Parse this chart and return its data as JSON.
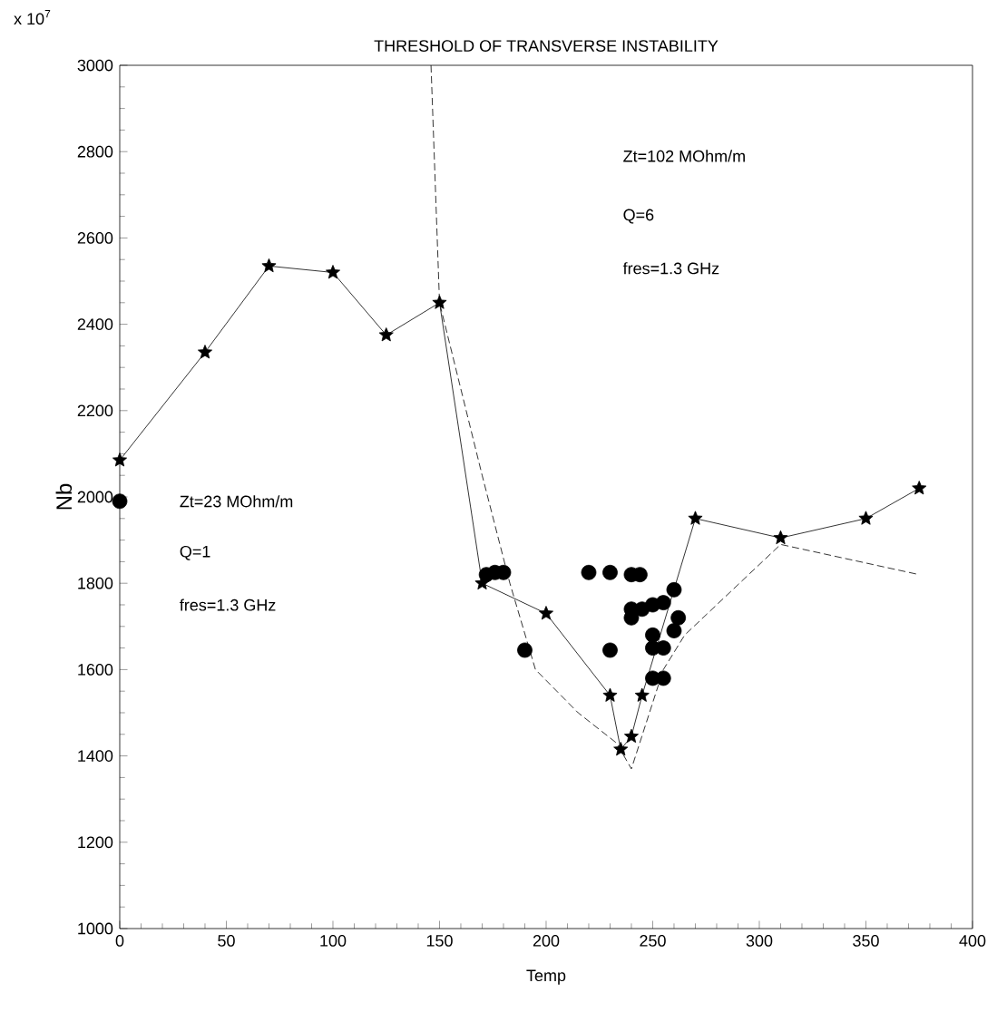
{
  "chart_data": {
    "type": "line",
    "title": "THRESHOLD OF TRANSVERSE INSTABILITY",
    "xlabel": "Temp",
    "ylabel": "Nb",
    "xlim": [
      0,
      400
    ],
    "ylim": [
      1000,
      3000
    ],
    "xticks": [
      0,
      50,
      100,
      150,
      200,
      250,
      300,
      350,
      400
    ],
    "yticks": [
      1000,
      1200,
      1400,
      1600,
      1800,
      2000,
      2200,
      2400,
      2600,
      2800,
      3000
    ],
    "annotations": [
      "x 10$^{7}$",
      "Zt=102 MOhm/m",
      "Q=6",
      "fres=1.3 GHz",
      "Zt=23 MOhm/m",
      "Q=1",
      "fres=1.3 GHz"
    ],
    "grid": false,
    "series": [
      {
        "color": "#000000",
        "marker": "star",
        "line_style": "solid",
        "x": [
          0,
          40,
          70,
          100,
          125,
          150,
          170,
          200,
          230,
          235,
          240,
          245,
          270,
          310,
          350,
          375
        ],
        "values": [
          2085,
          2335,
          2535,
          2520,
          2375,
          2450,
          1800,
          1730,
          1540,
          1415,
          1445,
          1540,
          1950,
          1905,
          1950,
          2020
        ]
      },
      {
        "color": "#000000",
        "marker": "none",
        "line_style": "dashed",
        "x": [
          146,
          150,
          170,
          183,
          195,
          215,
          233,
          240,
          255,
          265,
          310,
          375
        ],
        "values": [
          3000,
          2450,
          2050,
          1800,
          1600,
          1500,
          1430,
          1370,
          1600,
          1680,
          1890,
          1820
        ]
      },
      {
        "type": "scatter",
        "color": "#000000",
        "marker": "circle",
        "x": [
          0,
          172,
          176,
          180,
          190,
          220,
          230,
          240,
          244,
          230,
          240,
          240,
          245,
          250,
          255,
          260,
          250,
          250,
          255,
          260,
          262,
          250,
          255
        ],
        "values": [
          1990,
          1820,
          1825,
          1825,
          1645,
          1825,
          1825,
          1820,
          1820,
          1645,
          1740,
          1720,
          1740,
          1750,
          1755,
          1785,
          1680,
          1650,
          1650,
          1690,
          1720,
          1580,
          1580
        ]
      }
    ]
  }
}
